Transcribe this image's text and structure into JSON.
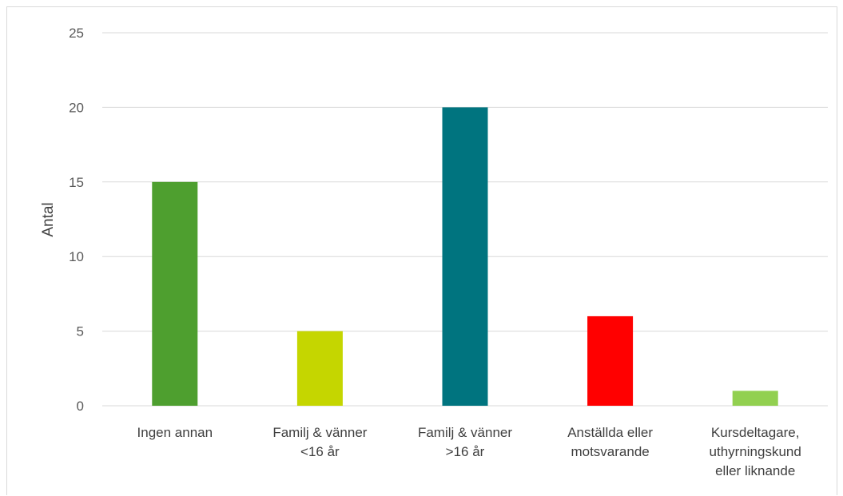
{
  "chart_data": {
    "type": "bar",
    "categories": [
      [
        "Ingen annan"
      ],
      [
        "Familj & vänner",
        "<16 år"
      ],
      [
        "Familj & vänner",
        ">16 år"
      ],
      [
        "Anställda eller",
        "motsvarande"
      ],
      [
        "Kursdeltagare,",
        "uthyrningskund",
        "eller liknande"
      ]
    ],
    "values": [
      15,
      5,
      20,
      6,
      1
    ],
    "colors": [
      "#4e9f2f",
      "#c5d600",
      "#00747f",
      "#ff0000",
      "#92d050"
    ],
    "xlabel": "",
    "ylabel": "Antal",
    "ylim": [
      0,
      25
    ],
    "yticks": [
      0,
      5,
      10,
      15,
      20,
      25
    ],
    "grid": true,
    "gridColor": "#d9d9d9"
  }
}
